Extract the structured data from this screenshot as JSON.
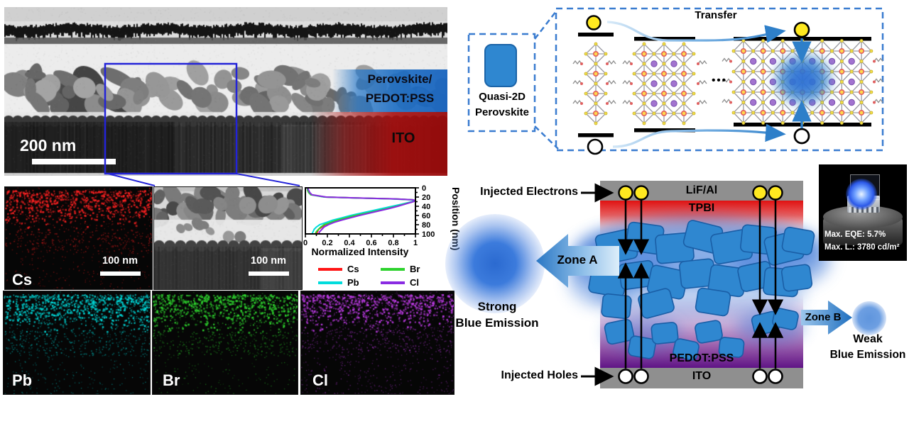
{
  "tem": {
    "scale_label": "200 nm",
    "perovskite_label_line1": "Perovskite/",
    "perovskite_label_line2": "PEDOT:PSS",
    "ito_label": "ITO"
  },
  "eds": {
    "cs_label": "Cs",
    "pb_label": "Pb",
    "br_label": "Br",
    "cl_label": "Cl",
    "scale_label_map": "100 nm",
    "scale_label_zoom": "100 nm"
  },
  "chart_data": {
    "type": "line",
    "xlabel": "Normalized Intensity",
    "ylabel": "Position (nm)",
    "xlim": [
      0,
      1
    ],
    "ylim": [
      0,
      100
    ],
    "y_axis_side": "right",
    "y_direction": "downward",
    "legend_position": "below",
    "x_ticks": [
      0,
      0.2,
      0.4,
      0.6,
      0.8,
      1
    ],
    "y_ticks": [
      0,
      20,
      40,
      60,
      80,
      100
    ],
    "positions_nm": [
      0,
      5,
      10,
      15,
      20,
      22,
      24,
      26,
      28,
      30,
      35,
      40,
      45,
      50,
      55,
      60,
      65,
      70,
      75,
      80,
      85,
      90,
      95,
      100
    ],
    "series": [
      {
        "name": "Cs",
        "color": "#ff1515",
        "values": [
          0.02,
          0.02,
          0.03,
          0.05,
          0.18,
          0.45,
          0.8,
          0.97,
          1.0,
          0.98,
          0.9,
          0.82,
          0.73,
          0.64,
          0.55,
          0.46,
          0.38,
          0.3,
          0.24,
          0.18,
          0.15,
          0.12,
          0.11,
          0.1
        ]
      },
      {
        "name": "Pb",
        "color": "#00dcdc",
        "values": [
          0.02,
          0.02,
          0.03,
          0.05,
          0.17,
          0.44,
          0.78,
          0.96,
          1.0,
          0.97,
          0.88,
          0.79,
          0.69,
          0.6,
          0.5,
          0.41,
          0.33,
          0.25,
          0.19,
          0.13,
          0.1,
          0.08,
          0.07,
          0.06
        ]
      },
      {
        "name": "Br",
        "color": "#2ed22e",
        "values": [
          0.02,
          0.02,
          0.03,
          0.05,
          0.18,
          0.46,
          0.82,
          0.98,
          1.0,
          0.98,
          0.9,
          0.83,
          0.74,
          0.65,
          0.55,
          0.45,
          0.37,
          0.29,
          0.23,
          0.17,
          0.14,
          0.12,
          0.1,
          0.09
        ]
      },
      {
        "name": "Cl",
        "color": "#8a2be2",
        "values": [
          0.02,
          0.03,
          0.04,
          0.06,
          0.19,
          0.47,
          0.82,
          0.98,
          1.0,
          0.98,
          0.91,
          0.84,
          0.76,
          0.67,
          0.58,
          0.49,
          0.41,
          0.33,
          0.26,
          0.21,
          0.17,
          0.15,
          0.13,
          0.12
        ]
      }
    ]
  },
  "schematic": {
    "box_label_line1": "Quasi-2D",
    "box_label_line2": "Perovskite",
    "transfer_label": "Transfer",
    "dots": "•••"
  },
  "device": {
    "injected_electrons": "Injected Electrons",
    "injected_holes": "Injected Holes",
    "layers": {
      "top": "LiF/Al",
      "etl": "TPBI",
      "htl": "PEDOT:PSS",
      "bottom": "ITO"
    },
    "zone_a": "Zone A",
    "zone_b": "Zone B",
    "strong_line1": "Strong",
    "strong_line2": "Blue Emission",
    "weak_line1": "Weak",
    "weak_line2": "Blue Emission",
    "inset": {
      "eqe": "Max. EQE: 5.7%",
      "luminance": "Max. L.:  3780 cd/m²"
    }
  },
  "colors": {
    "accent_blue": "#2e7fc9",
    "roi_blue": "#2323d8",
    "dashed_box_blue": "#3a7cd0",
    "crystal_blue": "#2f87d0",
    "eds_cs": "#ff2222",
    "eds_pb": "#00dcdc",
    "eds_br": "#2ed22e",
    "eds_cl": "#c03ce8",
    "tem_overlay_blue": "#1e6ec2",
    "tem_overlay_red": "#b01010"
  }
}
